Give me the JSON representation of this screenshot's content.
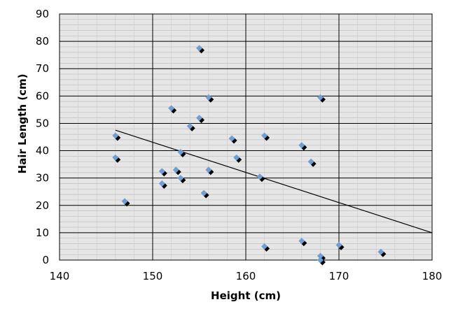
{
  "chart_data": {
    "type": "scatter",
    "title": "",
    "xlabel": "Height (cm)",
    "ylabel": "Hair Length (cm)",
    "xlim": [
      140,
      180
    ],
    "ylim": [
      0,
      90
    ],
    "x_ticks": [
      "140",
      "150",
      "160",
      "170",
      "180"
    ],
    "y_ticks": [
      "0",
      "10",
      "20",
      "30",
      "40",
      "50",
      "60",
      "70",
      "80",
      "90"
    ],
    "grid": true,
    "legend": "none",
    "plot_background": "#e6e6e6",
    "marker_color": "#6f9ed4",
    "marker_shadow_color": "#000000",
    "trendline_color": "#000000",
    "series": [
      {
        "points": [
          {
            "x": 146,
            "y": 45.5
          },
          {
            "x": 146,
            "y": 37.5
          },
          {
            "x": 147,
            "y": 21.5
          },
          {
            "x": 151,
            "y": 32.5
          },
          {
            "x": 151,
            "y": 28
          },
          {
            "x": 152,
            "y": 55.5
          },
          {
            "x": 152.5,
            "y": 33
          },
          {
            "x": 153,
            "y": 30
          },
          {
            "x": 153,
            "y": 39.5
          },
          {
            "x": 154,
            "y": 49
          },
          {
            "x": 155,
            "y": 77.5
          },
          {
            "x": 155,
            "y": 52
          },
          {
            "x": 155.5,
            "y": 24.5
          },
          {
            "x": 156,
            "y": 59.5
          },
          {
            "x": 156,
            "y": 33
          },
          {
            "x": 158.5,
            "y": 44.5
          },
          {
            "x": 159,
            "y": 37.5
          },
          {
            "x": 161.5,
            "y": 30.5
          },
          {
            "x": 162,
            "y": 45.5
          },
          {
            "x": 162,
            "y": 5
          },
          {
            "x": 166,
            "y": 42
          },
          {
            "x": 166,
            "y": 7
          },
          {
            "x": 167,
            "y": 36
          },
          {
            "x": 168,
            "y": 59.5
          },
          {
            "x": 168,
            "y": 1.5
          },
          {
            "x": 168,
            "y": 0
          },
          {
            "x": 170,
            "y": 5.5
          },
          {
            "x": 174.5,
            "y": 3
          }
        ]
      }
    ],
    "trendline": {
      "x": [
        146,
        180
      ],
      "y": [
        47.5,
        10
      ]
    }
  }
}
